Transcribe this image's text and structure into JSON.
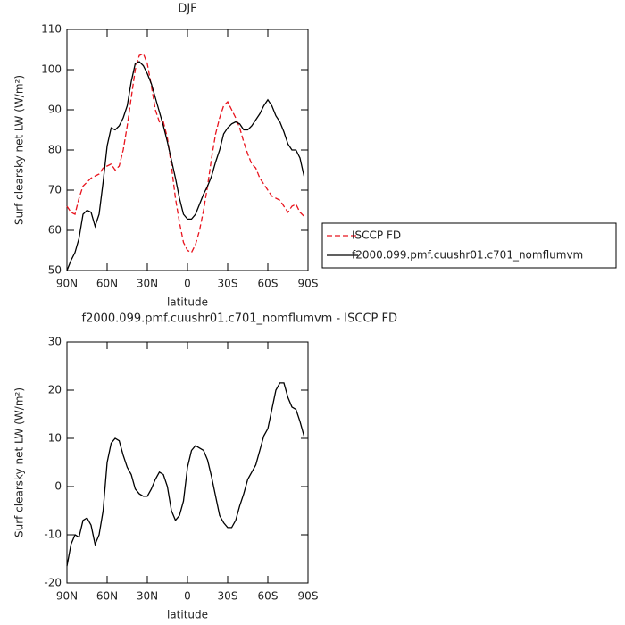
{
  "chart_data": [
    {
      "type": "line",
      "title": "DJF",
      "xlabel": "latitude",
      "ylabel": "Surf clearsky net LW (W/m²)",
      "x": [
        90,
        87,
        84,
        81,
        78,
        75,
        72,
        69,
        66,
        63,
        60,
        57,
        54,
        51,
        48,
        45,
        42,
        39,
        36,
        33,
        30,
        27,
        24,
        21,
        18,
        15,
        12,
        9,
        6,
        3,
        0,
        -3,
        -6,
        -9,
        -12,
        -15,
        -18,
        -21,
        -24,
        -27,
        -30,
        -33,
        -36,
        -39,
        -42,
        -45,
        -48,
        -51,
        -54,
        -57,
        -60,
        -63,
        -66,
        -69,
        -72,
        -75,
        -78,
        -81,
        -84,
        -87
      ],
      "series": [
        {
          "name": "ISCCP FD",
          "color": "#e8141e",
          "dash": true,
          "values": [
            66,
            64.5,
            64,
            68,
            71,
            72,
            73,
            73.5,
            74,
            75.5,
            76,
            76.5,
            75,
            76,
            80,
            86,
            93,
            100,
            103.5,
            104,
            101.5,
            96,
            90,
            87,
            87,
            83,
            76,
            68,
            62,
            57,
            55,
            54.5,
            56.5,
            60,
            65,
            71,
            78,
            84,
            88,
            91,
            92,
            90,
            88,
            85.5,
            82,
            79,
            76.5,
            75.5,
            73,
            71.5,
            70,
            68.5,
            68,
            67.5,
            66,
            64.5,
            66,
            66.5,
            64.5,
            63.5
          ]
        },
        {
          "name": "f2000.099.pmf.cuushr01.c701_nomflumvm",
          "color": "#000000",
          "dash": false,
          "values": [
            50,
            52.5,
            54.5,
            58,
            64,
            65,
            64.5,
            61,
            64,
            72,
            81,
            85.5,
            85,
            86,
            88,
            91,
            97,
            101.5,
            102,
            101,
            99,
            96.5,
            93,
            89.5,
            86,
            82,
            77.5,
            73,
            68,
            64,
            62.8,
            62.8,
            64,
            66.5,
            69,
            71,
            73.5,
            77,
            80,
            84,
            85.5,
            86.5,
            87,
            86.5,
            85,
            85,
            86,
            87.5,
            89,
            91,
            92.5,
            91,
            88.5,
            87,
            84.5,
            81.5,
            80,
            80,
            78,
            73.5
          ]
        }
      ],
      "xlim": [
        90,
        -90
      ],
      "xticks": [
        {
          "value": 90,
          "label": "90N"
        },
        {
          "value": 60,
          "label": "60N"
        },
        {
          "value": 30,
          "label": "30N"
        },
        0,
        {
          "value": -30,
          "label": "30S"
        },
        {
          "value": -60,
          "label": "60S"
        },
        {
          "value": -90,
          "label": "90S"
        }
      ],
      "ylim": [
        50,
        110
      ],
      "yticks": [
        50,
        60,
        70,
        80,
        90,
        100,
        110
      ],
      "legend": "right"
    },
    {
      "type": "line",
      "title": "f2000.099.pmf.cuushr01.c701_nomflumvm - ISCCP FD",
      "xlabel": "latitude",
      "ylabel": "Surf clearsky net LW (W/m²)",
      "x": [
        90,
        87,
        84,
        81,
        78,
        75,
        72,
        69,
        66,
        63,
        60,
        57,
        54,
        51,
        48,
        45,
        42,
        39,
        36,
        33,
        30,
        27,
        24,
        21,
        18,
        15,
        12,
        9,
        6,
        3,
        0,
        -3,
        -6,
        -9,
        -12,
        -15,
        -18,
        -21,
        -24,
        -27,
        -30,
        -33,
        -36,
        -39,
        -42,
        -45,
        -48,
        -51,
        -54,
        -57,
        -60,
        -63,
        -66,
        -69,
        -72,
        -75,
        -78,
        -81,
        -84,
        -87
      ],
      "series": [
        {
          "color": "#000000",
          "dash": false,
          "values": [
            -16.5,
            -12,
            -10,
            -10.5,
            -7,
            -6.5,
            -8,
            -12,
            -10,
            -5,
            5,
            9,
            10,
            9.5,
            6.5,
            4,
            2.5,
            -0.5,
            -1.5,
            -2,
            -2,
            -0.5,
            1.5,
            3,
            2.5,
            0,
            -5,
            -7,
            -6,
            -3,
            4,
            7.5,
            8.5,
            8,
            7.5,
            5.5,
            2,
            -2,
            -6,
            -7.5,
            -8.5,
            -8.5,
            -7,
            -4,
            -1.5,
            1.5,
            3,
            4.5,
            7.5,
            10.5,
            12,
            16,
            20,
            21.5,
            21.5,
            18.5,
            16.5,
            16,
            13.5,
            10.5
          ]
        }
      ],
      "xlim": [
        90,
        -90
      ],
      "xticks": [
        {
          "value": 90,
          "label": "90N"
        },
        {
          "value": 60,
          "label": "60N"
        },
        {
          "value": 30,
          "label": "30N"
        },
        0,
        {
          "value": -30,
          "label": "30S"
        },
        {
          "value": -60,
          "label": "60S"
        },
        {
          "value": -90,
          "label": "90S"
        }
      ],
      "ylim": [
        -20,
        30
      ],
      "yticks": [
        -20,
        -10,
        0,
        10,
        20,
        30
      ]
    }
  ]
}
